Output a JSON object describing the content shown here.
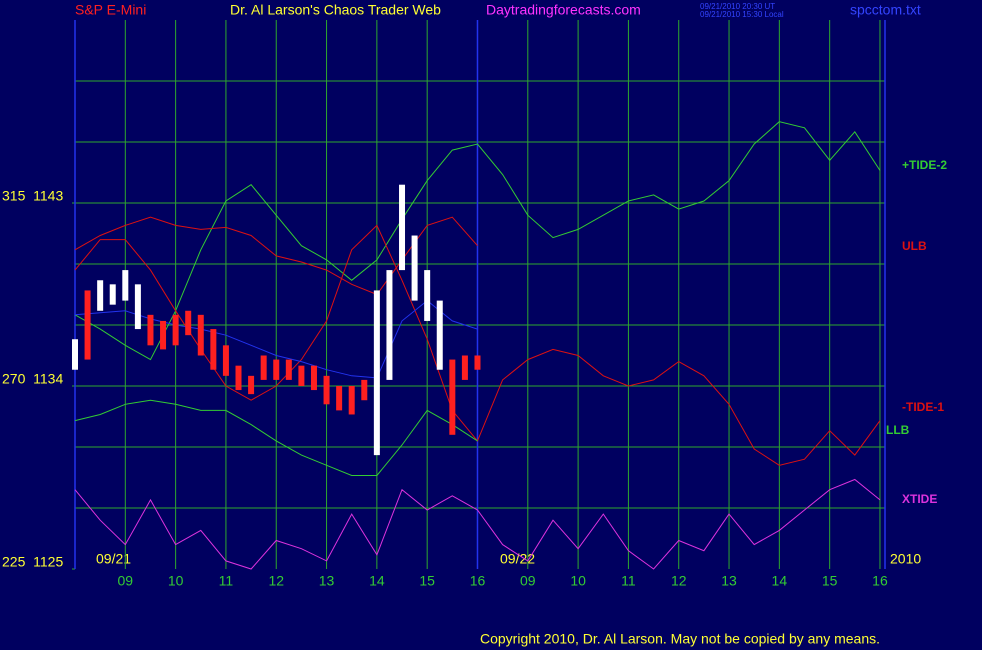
{
  "chart_data": {
    "type": "line",
    "instrument": "S&P E-Mini",
    "title": "Dr. Al Larson's Chaos Trader Web",
    "site": "Daytradingforecasts.com",
    "timestamps": [
      "09/21/2010 20:30 UT",
      "09/21/2010 15:30 Local"
    ],
    "file": "spcctom.txt",
    "date_labels": [
      "09/21",
      "09/22",
      "2010"
    ],
    "copyright": "Copyright 2010, Dr. Al Larson. May not be copied by any means.",
    "xlim": [
      8,
      24.1
    ],
    "ylim": [
      1125,
      1152
    ],
    "xticks": [
      {
        "value": 9,
        "label": "09"
      },
      10,
      11,
      12,
      13,
      14,
      15,
      16,
      {
        "value": 17,
        "label": "09"
      },
      {
        "value": 18,
        "label": "10"
      },
      {
        "value": 19,
        "label": "11"
      },
      {
        "value": 20,
        "label": "12"
      },
      {
        "value": 21,
        "label": "13"
      },
      {
        "value": 22,
        "label": "14"
      },
      {
        "value": 23,
        "label": "15"
      },
      {
        "value": 24,
        "label": "16"
      }
    ],
    "yticks": [
      {
        "value": 1143,
        "label": "315  1143"
      },
      {
        "value": 1134,
        "label": "270  1134"
      },
      {
        "value": 1125,
        "label": "225  1125"
      }
    ],
    "ygrid": [
      1128,
      1131,
      1134,
      1137,
      1140,
      1143,
      1146,
      1149
    ],
    "grid": true,
    "x": [
      8,
      8.5,
      9,
      9.5,
      10,
      10.5,
      11,
      11.5,
      12,
      12.5,
      13,
      13.5,
      14,
      14.5,
      15,
      15.5,
      16,
      16.5,
      17,
      17.5,
      18,
      18.5,
      19,
      19.5,
      20,
      20.5,
      21,
      21.5,
      22,
      22.5,
      23,
      23.5,
      24
    ],
    "series": [
      {
        "name": "+TIDE-2",
        "color": "#33cc33",
        "values": [
          1137.5,
          1136.8,
          1136.0,
          1135.3,
          1137.7,
          1140.7,
          1143.1,
          1143.9,
          1142.4,
          1140.9,
          1140.2,
          1139.2,
          1140.2,
          1142.2,
          1144.1,
          1145.6,
          1145.9,
          1144.4,
          1142.4,
          1141.3,
          1141.7,
          1142.4,
          1143.1,
          1143.4,
          1142.7,
          1143.1,
          1144.1,
          1145.9,
          1147.0,
          1146.7,
          1145.1,
          1146.5,
          1144.6
        ]
      },
      {
        "name": "ULB",
        "color": "#dd1111",
        "values": [
          1140.7,
          1141.4,
          1141.9,
          1142.3,
          1141.9,
          1141.7,
          1141.8,
          1141.4,
          1140.4,
          1140.1,
          1139.7,
          1139.0,
          1138.5,
          1140.2,
          1141.9,
          1142.3,
          1140.9,
          null,
          null,
          null,
          null,
          null,
          null,
          null,
          null,
          null,
          null,
          null,
          null,
          null,
          null,
          null,
          null
        ]
      },
      {
        "name": "-TIDE-1",
        "color": "#dd1111",
        "values": [
          1139.7,
          1141.2,
          1141.2,
          1139.7,
          1137.7,
          1135.8,
          1134.0,
          1133.3,
          1134.0,
          1135.3,
          1137.2,
          1140.7,
          1141.9,
          1139.2,
          1136.3,
          1132.8,
          1131.3,
          1134.3,
          1135.3,
          1135.8,
          1135.5,
          1134.5,
          1134.0,
          1134.3,
          1135.2,
          1134.5,
          1133.1,
          1130.9,
          1130.1,
          1130.4,
          1131.8,
          1130.6,
          1132.3
        ]
      },
      {
        "name": "LLB",
        "color": "#33cc33",
        "values": [
          1132.3,
          1132.6,
          1133.1,
          1133.3,
          1133.1,
          1132.8,
          1132.8,
          1132.1,
          1131.3,
          1130.6,
          1130.1,
          1129.6,
          1129.6,
          1131.1,
          1132.8,
          1132.1,
          1131.3,
          null,
          null,
          null,
          null,
          null,
          null,
          null,
          null,
          null,
          null,
          null,
          null,
          null,
          null,
          null,
          null
        ]
      },
      {
        "name": "XTIDE",
        "color": "#dd33dd",
        "values": [
          1128.9,
          1127.4,
          1126.2,
          1128.4,
          1126.2,
          1126.9,
          1125.4,
          1125.0,
          1126.4,
          1126.0,
          1125.4,
          1127.7,
          1125.7,
          1128.9,
          1127.9,
          1128.6,
          1127.9,
          1126.2,
          1125.4,
          1127.4,
          1126.0,
          1127.7,
          1125.9,
          1125.0,
          1126.4,
          1125.9,
          1127.7,
          1126.2,
          1126.9,
          1127.9,
          1128.9,
          1129.4,
          1128.4
        ]
      },
      {
        "color": "#2233ee",
        "values": [
          1137.5,
          1137.6,
          1137.7,
          1137.3,
          1137.0,
          1136.8,
          1136.5,
          1136.0,
          1135.5,
          1135.2,
          1134.8,
          1134.5,
          1134.4,
          1137.2,
          1138.2,
          1137.2,
          1136.8,
          null,
          null,
          null,
          null,
          null,
          null,
          null,
          null,
          null,
          null,
          null,
          null,
          null,
          null,
          null,
          null
        ]
      }
    ],
    "price_bars": {
      "x": [
        8,
        8.25,
        8.5,
        8.75,
        9,
        9.25,
        9.5,
        9.75,
        10,
        10.25,
        10.5,
        10.75,
        11,
        11.25,
        11.5,
        11.75,
        12,
        12.25,
        12.5,
        12.75,
        13,
        13.25,
        13.5,
        13.75,
        14,
        14.25,
        14.5,
        14.75,
        15,
        15.25,
        15.5,
        15.75,
        16
      ],
      "high": [
        1136.3,
        1138.7,
        1139.2,
        1139.0,
        1139.7,
        1139.0,
        1137.5,
        1137.2,
        1137.5,
        1137.7,
        1137.5,
        1136.8,
        1136.0,
        1135.0,
        1134.5,
        1135.5,
        1135.3,
        1135.3,
        1135.0,
        1135.0,
        1134.5,
        1134.0,
        1134.0,
        1134.3,
        1138.7,
        1139.7,
        1143.9,
        1141.4,
        1139.7,
        1138.2,
        1135.3,
        1135.5,
        1135.5
      ],
      "low": [
        1134.8,
        1135.3,
        1137.7,
        1138.0,
        1138.2,
        1136.8,
        1136.0,
        1135.8,
        1136.0,
        1136.5,
        1135.5,
        1134.8,
        1134.5,
        1133.8,
        1133.6,
        1134.3,
        1134.3,
        1134.3,
        1134.0,
        1133.8,
        1133.1,
        1132.8,
        1132.6,
        1133.3,
        1130.6,
        1134.3,
        1139.7,
        1138.2,
        1137.2,
        1134.8,
        1131.6,
        1134.3,
        1134.8
      ],
      "colors": [
        "#ffffff",
        "#ff2020",
        "#ffffff",
        "#ffffff",
        "#ffffff",
        "#ffffff",
        "#ff2020",
        "#ff2020",
        "#ff2020",
        "#ff2020",
        "#ff2020",
        "#ff2020",
        "#ff2020",
        "#ff2020",
        "#ff2020",
        "#ff2020",
        "#ff2020",
        "#ff2020",
        "#ff2020",
        "#ff2020",
        "#ff2020",
        "#ff2020",
        "#ff2020",
        "#ff2020",
        "#ffffff",
        "#ffffff",
        "#ffffff",
        "#ffffff",
        "#ffffff",
        "#ffffff",
        "#ff2020",
        "#ff2020",
        "#ff2020"
      ]
    }
  }
}
